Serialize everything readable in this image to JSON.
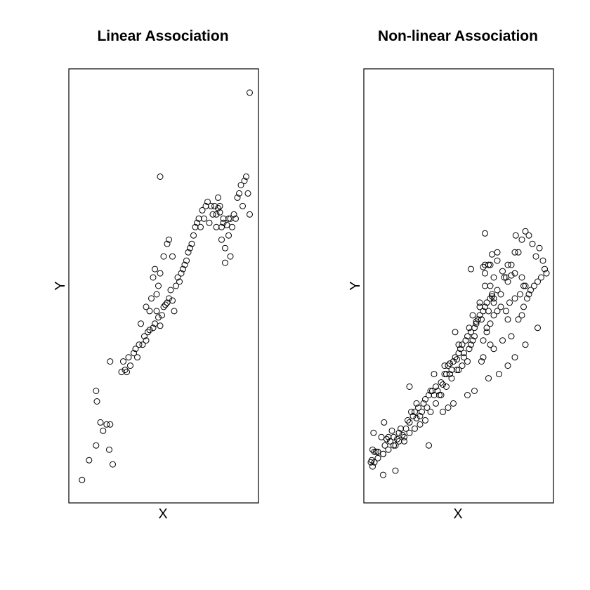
{
  "chart_data": [
    {
      "type": "scatter",
      "title": "Linear Association",
      "xlabel": "X",
      "ylabel": "Y",
      "xlim": [
        0,
        100
      ],
      "ylim": [
        0,
        100
      ],
      "axes_ticks": false,
      "grid": false,
      "marker": "open-circle",
      "points": [
        [
          3.5,
          3.8
        ],
        [
          7.5,
          8.5
        ],
        [
          11.5,
          12
        ],
        [
          15.5,
          15.5
        ],
        [
          19,
          11
        ],
        [
          21,
          7.5
        ],
        [
          12,
          22.5
        ],
        [
          11.5,
          25
        ],
        [
          14,
          17.5
        ],
        [
          17.5,
          17
        ],
        [
          19.5,
          17
        ],
        [
          19.5,
          32
        ],
        [
          26,
          29.5
        ],
        [
          27,
          32
        ],
        [
          28,
          30
        ],
        [
          29,
          29.5
        ],
        [
          30,
          33
        ],
        [
          31,
          31
        ],
        [
          33,
          34
        ],
        [
          34,
          35
        ],
        [
          35,
          33
        ],
        [
          36,
          36
        ],
        [
          38,
          36
        ],
        [
          39,
          38
        ],
        [
          40,
          37
        ],
        [
          41,
          39
        ],
        [
          42,
          39.5
        ],
        [
          44,
          40
        ],
        [
          45,
          41
        ],
        [
          46,
          44
        ],
        [
          47,
          42.5
        ],
        [
          48,
          40.5
        ],
        [
          49,
          43
        ],
        [
          50,
          45
        ],
        [
          51,
          45.5
        ],
        [
          52,
          46
        ],
        [
          53,
          47
        ],
        [
          54,
          49
        ],
        [
          55,
          46.5
        ],
        [
          56,
          44
        ],
        [
          57,
          50
        ],
        [
          58,
          52
        ],
        [
          59,
          51
        ],
        [
          60,
          53
        ],
        [
          61,
          54
        ],
        [
          62,
          55
        ],
        [
          63,
          56
        ],
        [
          64,
          58
        ],
        [
          65,
          59
        ],
        [
          66,
          60
        ],
        [
          67,
          62
        ],
        [
          68,
          64
        ],
        [
          69,
          65
        ],
        [
          70,
          66
        ],
        [
          71,
          64
        ],
        [
          72,
          68
        ],
        [
          73,
          66
        ],
        [
          74,
          69
        ],
        [
          75,
          70
        ],
        [
          76,
          65
        ],
        [
          77,
          69
        ],
        [
          78,
          67
        ],
        [
          79,
          69
        ],
        [
          80,
          67
        ],
        [
          81,
          71
        ],
        [
          82,
          69
        ],
        [
          83,
          64
        ],
        [
          84,
          66
        ],
        [
          85,
          59
        ],
        [
          87,
          62
        ],
        [
          88,
          66
        ],
        [
          89,
          64
        ],
        [
          90,
          67
        ],
        [
          91,
          66
        ],
        [
          92,
          71
        ],
        [
          93,
          72
        ],
        [
          94,
          74
        ],
        [
          95,
          69
        ],
        [
          96,
          75
        ],
        [
          97,
          76
        ],
        [
          98,
          72
        ],
        [
          99,
          67
        ],
        [
          80,
          64
        ],
        [
          81,
          68.5
        ],
        [
          82,
          67.5
        ],
        [
          83,
          61
        ],
        [
          84,
          65
        ],
        [
          85,
          55.5
        ],
        [
          86,
          64.5
        ],
        [
          87,
          66
        ],
        [
          88,
          57
        ],
        [
          40,
          45
        ],
        [
          42,
          44
        ],
        [
          43,
          47
        ],
        [
          44,
          52
        ],
        [
          46,
          48
        ],
        [
          47,
          50
        ],
        [
          48,
          53
        ],
        [
          50,
          57
        ],
        [
          52,
          60
        ],
        [
          53,
          61
        ],
        [
          55,
          57
        ],
        [
          45,
          54
        ],
        [
          37,
          41
        ],
        [
          48,
          76
        ],
        [
          99,
          96
        ]
      ]
    },
    {
      "type": "scatter",
      "title": "Non-linear Association",
      "xlabel": "X",
      "ylabel": "Y",
      "xlim": [
        0,
        100
      ],
      "ylim": [
        0,
        100
      ],
      "axes_ticks": false,
      "grid": false,
      "marker": "open-circle",
      "points": [
        [
          0.5,
          8.5
        ],
        [
          1,
          11
        ],
        [
          1.5,
          15
        ],
        [
          2,
          10.5
        ],
        [
          3,
          10.5
        ],
        [
          4,
          10.5
        ],
        [
          6,
          14
        ],
        [
          7,
          10
        ],
        [
          7.5,
          17.5
        ],
        [
          8,
          12
        ],
        [
          9,
          13.5
        ],
        [
          10,
          14
        ],
        [
          11,
          13
        ],
        [
          12,
          15.5
        ],
        [
          13,
          14
        ],
        [
          14,
          12
        ],
        [
          15,
          13.5
        ],
        [
          16,
          15
        ],
        [
          17,
          16
        ],
        [
          18,
          14.5
        ],
        [
          19,
          13
        ],
        [
          20,
          16
        ],
        [
          21,
          18
        ],
        [
          22,
          17.5
        ],
        [
          23,
          20
        ],
        [
          24,
          19
        ],
        [
          25,
          20
        ],
        [
          26,
          22
        ],
        [
          27,
          21
        ],
        [
          28,
          19
        ],
        [
          29,
          20
        ],
        [
          30,
          22
        ],
        [
          31,
          23
        ],
        [
          32,
          21
        ],
        [
          33,
          24
        ],
        [
          34,
          25
        ],
        [
          35,
          25
        ],
        [
          36,
          24
        ],
        [
          37,
          26
        ],
        [
          38,
          25
        ],
        [
          39,
          24
        ],
        [
          40,
          27
        ],
        [
          41,
          26.5
        ],
        [
          42,
          29
        ],
        [
          43,
          29
        ],
        [
          44,
          31
        ],
        [
          45,
          31.5
        ],
        [
          46,
          30
        ],
        [
          47,
          32
        ],
        [
          48,
          33
        ],
        [
          49,
          32.5
        ],
        [
          50,
          34
        ],
        [
          51,
          35
        ],
        [
          52,
          36
        ],
        [
          53,
          34
        ],
        [
          54,
          37
        ],
        [
          55,
          38
        ],
        [
          56,
          40
        ],
        [
          57,
          39
        ],
        [
          58,
          37
        ],
        [
          59,
          38
        ],
        [
          60,
          41
        ],
        [
          61,
          42
        ],
        [
          62,
          43
        ],
        [
          63,
          42
        ],
        [
          64,
          44
        ],
        [
          65,
          45
        ],
        [
          66,
          46
        ],
        [
          67,
          44
        ],
        [
          68,
          47
        ],
        [
          69,
          48
        ],
        [
          70,
          46
        ],
        [
          72,
          49
        ],
        [
          74,
          48
        ],
        [
          76,
          52
        ],
        [
          78,
          51
        ],
        [
          80,
          55
        ],
        [
          82,
          53
        ],
        [
          84,
          58
        ],
        [
          86,
          61
        ],
        [
          88,
          63
        ],
        [
          90,
          62
        ],
        [
          92,
          60
        ],
        [
          94,
          57
        ],
        [
          96,
          59
        ],
        [
          98,
          56
        ],
        [
          99,
          54
        ],
        [
          100,
          53
        ],
        [
          7,
          5
        ],
        [
          14,
          6
        ],
        [
          1,
          7
        ],
        [
          33,
          12
        ],
        [
          26,
          18.5
        ],
        [
          22,
          26
        ],
        [
          36,
          29
        ],
        [
          42,
          31
        ],
        [
          48,
          39
        ],
        [
          50,
          36
        ],
        [
          58,
          43
        ],
        [
          62,
          46
        ],
        [
          68,
          50
        ],
        [
          65,
          53
        ],
        [
          70,
          52
        ],
        [
          78,
          55
        ],
        [
          82,
          58
        ],
        [
          64,
          54.5
        ],
        [
          69,
          57.5
        ],
        [
          57,
          54
        ],
        [
          65,
          62.5
        ],
        [
          72,
          58
        ],
        [
          75,
          53.5
        ],
        [
          82.5,
          62
        ],
        [
          87,
          50
        ],
        [
          90,
          48
        ],
        [
          65,
          55
        ],
        [
          70,
          47
        ],
        [
          77,
          52
        ],
        [
          88,
          50
        ],
        [
          68,
          55
        ],
        [
          86,
          52
        ],
        [
          52,
          31
        ],
        [
          63,
          32
        ],
        [
          56,
          35
        ],
        [
          41,
          20
        ],
        [
          44,
          21
        ],
        [
          47,
          22
        ],
        [
          55,
          24
        ],
        [
          59,
          25
        ],
        [
          67,
          28
        ],
        [
          73,
          29
        ],
        [
          78,
          31
        ],
        [
          82,
          33
        ],
        [
          88,
          36
        ],
        [
          95,
          40
        ],
        [
          67,
          55
        ],
        [
          65,
          50
        ],
        [
          78,
          42
        ],
        [
          72,
          56
        ],
        [
          62,
          45
        ],
        [
          69,
          47.5
        ],
        [
          60,
          41.5
        ],
        [
          45,
          29
        ],
        [
          50,
          30
        ],
        [
          55,
          32
        ],
        [
          68,
          36
        ],
        [
          66,
          39
        ],
        [
          64,
          33
        ],
        [
          70,
          35
        ],
        [
          75,
          37
        ],
        [
          80,
          38
        ],
        [
          84,
          42
        ],
        [
          86,
          43
        ],
        [
          87,
          45
        ],
        [
          89,
          47
        ],
        [
          91,
          49
        ],
        [
          93,
          50
        ],
        [
          95,
          51
        ],
        [
          97,
          52
        ],
        [
          85,
          48
        ],
        [
          82,
          47
        ],
        [
          79,
          46
        ],
        [
          77,
          44
        ],
        [
          80,
          52.5
        ],
        [
          64,
          37
        ],
        [
          66,
          40
        ],
        [
          68,
          41
        ],
        [
          70,
          43
        ],
        [
          72,
          44
        ],
        [
          74,
          45
        ],
        [
          59,
          40
        ],
        [
          57,
          36
        ],
        [
          53,
          33
        ],
        [
          49,
          30
        ],
        [
          46,
          28
        ],
        [
          43,
          26
        ],
        [
          40,
          24
        ],
        [
          37,
          22
        ],
        [
          34,
          20
        ],
        [
          31,
          18
        ],
        [
          28,
          17
        ],
        [
          25,
          16
        ],
        [
          22,
          15
        ],
        [
          19,
          14
        ],
        [
          16,
          13
        ],
        [
          13,
          12
        ],
        [
          10,
          11
        ],
        [
          7,
          10
        ],
        [
          4,
          9
        ],
        [
          2,
          8
        ],
        [
          0,
          8
        ]
      ]
    }
  ]
}
